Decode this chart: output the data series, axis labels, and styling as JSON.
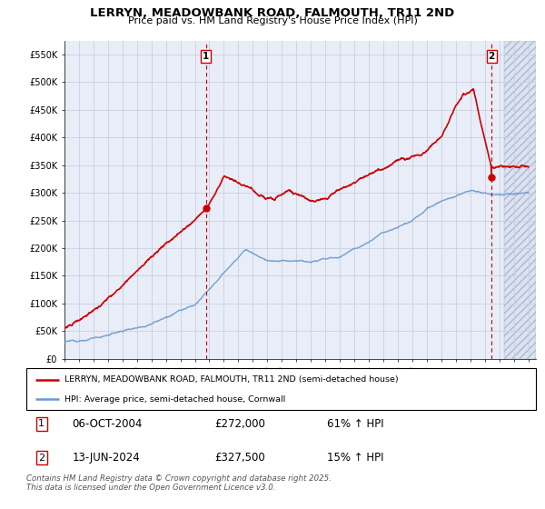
{
  "title": "LERRYN, MEADOWBANK ROAD, FALMOUTH, TR11 2ND",
  "subtitle": "Price paid vs. HM Land Registry's House Price Index (HPI)",
  "ylim": [
    0,
    575000
  ],
  "xlim_start": 1995.0,
  "xlim_end": 2027.5,
  "yticks": [
    0,
    50000,
    100000,
    150000,
    200000,
    250000,
    300000,
    350000,
    400000,
    450000,
    500000,
    550000
  ],
  "ytick_labels": [
    "£0",
    "£50K",
    "£100K",
    "£150K",
    "£200K",
    "£250K",
    "£300K",
    "£350K",
    "£400K",
    "£450K",
    "£500K",
    "£550K"
  ],
  "xtick_years": [
    1995,
    1996,
    1997,
    1998,
    1999,
    2000,
    2001,
    2002,
    2003,
    2004,
    2005,
    2006,
    2007,
    2008,
    2009,
    2010,
    2011,
    2012,
    2013,
    2014,
    2015,
    2016,
    2017,
    2018,
    2019,
    2020,
    2021,
    2022,
    2023,
    2024,
    2025,
    2026,
    2027
  ],
  "sale1_x": 2004.77,
  "sale1_y": 272000,
  "sale2_x": 2024.45,
  "sale2_y": 327500,
  "legend_red": "LERRYN, MEADOWBANK ROAD, FALMOUTH, TR11 2ND (semi-detached house)",
  "legend_blue": "HPI: Average price, semi-detached house, Cornwall",
  "footer": "Contains HM Land Registry data © Crown copyright and database right 2025.\nThis data is licensed under the Open Government Licence v3.0.",
  "red_color": "#cc0000",
  "blue_color": "#6699cc",
  "grid_color": "#c8d0e0",
  "bg_color": "#e8edf8"
}
